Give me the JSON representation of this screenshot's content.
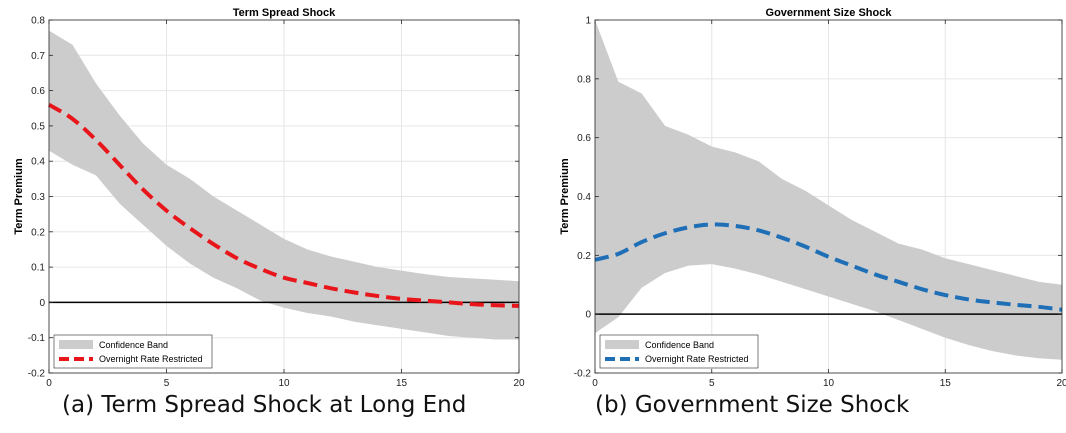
{
  "captions": {
    "a": "(a) Term Spread Shock at Long End",
    "b": "(b) Government Size Shock"
  },
  "chart_data": [
    {
      "type": "line",
      "title": "Term Spread Shock",
      "xlabel": "",
      "ylabel": "Term Premium",
      "xlim": [
        0,
        20
      ],
      "ylim": [
        -0.2,
        0.8
      ],
      "xticks": [
        0,
        5,
        10,
        15,
        20
      ],
      "yticks": [
        -0.2,
        -0.1,
        0,
        0.1,
        0.2,
        0.3,
        0.4,
        0.5,
        0.6,
        0.7,
        0.8
      ],
      "grid": true,
      "legend_position": "bottom-left",
      "zero_line": true,
      "x": [
        0,
        1,
        2,
        3,
        4,
        5,
        6,
        7,
        8,
        9,
        10,
        11,
        12,
        13,
        14,
        15,
        16,
        17,
        18,
        19,
        20
      ],
      "band": {
        "name": "Confidence Band",
        "color": "#cccccc",
        "upper": [
          0.77,
          0.73,
          0.62,
          0.53,
          0.45,
          0.39,
          0.35,
          0.3,
          0.26,
          0.22,
          0.18,
          0.15,
          0.13,
          0.115,
          0.1,
          0.09,
          0.08,
          0.072,
          0.068,
          0.064,
          0.06
        ],
        "lower": [
          0.43,
          0.39,
          0.36,
          0.28,
          0.22,
          0.16,
          0.11,
          0.07,
          0.04,
          0.005,
          -0.015,
          -0.03,
          -0.04,
          -0.055,
          -0.065,
          -0.075,
          -0.085,
          -0.095,
          -0.1,
          -0.105,
          -0.105
        ]
      },
      "series": [
        {
          "name": "Overnight Rate Restricted",
          "color": "#e8161b",
          "values": [
            0.56,
            0.52,
            0.46,
            0.39,
            0.32,
            0.26,
            0.21,
            0.165,
            0.125,
            0.095,
            0.07,
            0.055,
            0.04,
            0.028,
            0.018,
            0.01,
            0.005,
            0.0,
            -0.005,
            -0.008,
            -0.01
          ]
        }
      ]
    },
    {
      "type": "line",
      "title": "Government Size Shock",
      "xlabel": "",
      "ylabel": "Term Premium",
      "xlim": [
        0,
        20
      ],
      "ylim": [
        -0.2,
        1
      ],
      "xticks": [
        0,
        5,
        10,
        15,
        20
      ],
      "yticks": [
        -0.2,
        0,
        0.2,
        0.4,
        0.6,
        0.8,
        1
      ],
      "grid": true,
      "legend_position": "bottom-left",
      "zero_line": true,
      "x": [
        0,
        1,
        2,
        3,
        4,
        5,
        6,
        7,
        8,
        9,
        10,
        11,
        12,
        13,
        14,
        15,
        16,
        17,
        18,
        19,
        20
      ],
      "band": {
        "name": "Confidence Band",
        "color": "#cccccc",
        "upper": [
          1.0,
          0.79,
          0.75,
          0.64,
          0.61,
          0.57,
          0.55,
          0.52,
          0.46,
          0.42,
          0.37,
          0.32,
          0.28,
          0.24,
          0.22,
          0.19,
          0.17,
          0.15,
          0.13,
          0.11,
          0.1
        ],
        "lower": [
          -0.065,
          -0.01,
          0.09,
          0.14,
          0.165,
          0.17,
          0.155,
          0.135,
          0.11,
          0.085,
          0.06,
          0.035,
          0.01,
          -0.02,
          -0.05,
          -0.08,
          -0.105,
          -0.125,
          -0.14,
          -0.15,
          -0.155
        ]
      },
      "series": [
        {
          "name": "Overnight Rate Restricted",
          "color": "#1f6fb7",
          "values": [
            0.185,
            0.205,
            0.245,
            0.275,
            0.295,
            0.305,
            0.3,
            0.285,
            0.26,
            0.23,
            0.195,
            0.165,
            0.135,
            0.11,
            0.085,
            0.065,
            0.05,
            0.04,
            0.032,
            0.025,
            0.015
          ]
        }
      ]
    }
  ]
}
